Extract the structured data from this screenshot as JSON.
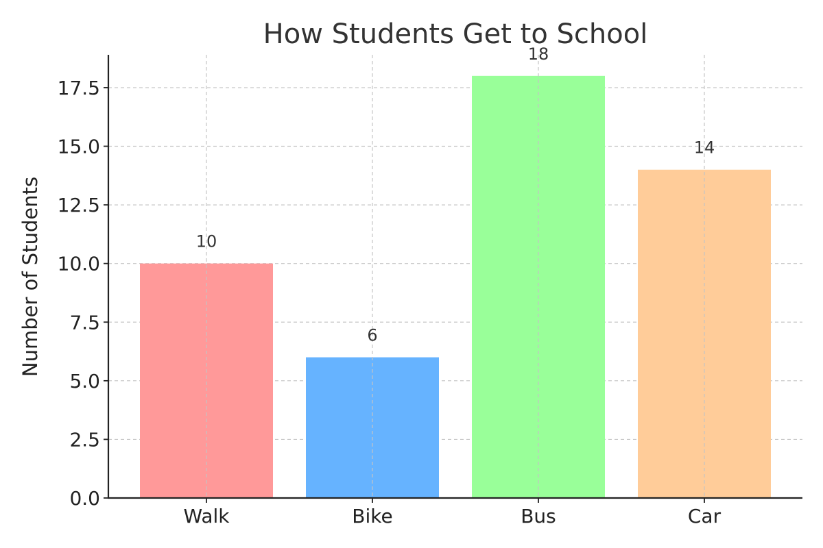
{
  "chart_data": {
    "type": "bar",
    "title": "How Students Get to School",
    "xlabel": "",
    "ylabel": "Number of Students",
    "categories": [
      "Walk",
      "Bike",
      "Bus",
      "Car"
    ],
    "values": [
      10,
      6,
      18,
      14
    ],
    "data_labels": [
      "10",
      "6",
      "18",
      "14"
    ],
    "colors": [
      "#ff9999",
      "#66b3ff",
      "#99ff99",
      "#ffcc99"
    ],
    "ylim": [
      0,
      18.9
    ],
    "yticks": [
      0,
      2.5,
      5,
      7.5,
      10,
      12.5,
      15,
      17.5
    ],
    "ytick_labels": [
      "0.0",
      "2.5",
      "5.0",
      "7.5",
      "10.0",
      "12.5",
      "15.0",
      "17.5"
    ],
    "grid": true,
    "legend": "none"
  }
}
